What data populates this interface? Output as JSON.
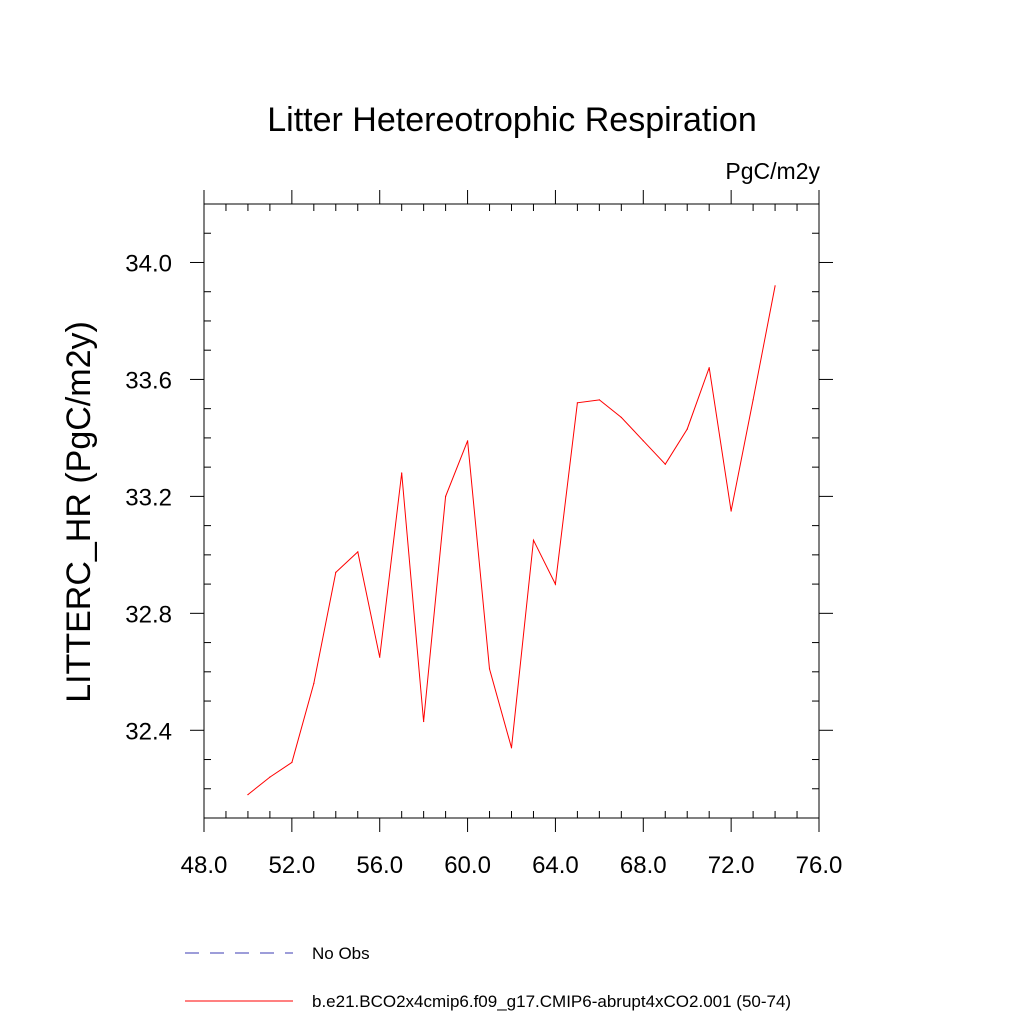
{
  "chart_data": {
    "type": "line",
    "title": "Litter Hetereotrophic Respiration",
    "units_label": "PgC/m2y",
    "xlabel": "",
    "ylabel": "LITTERC_HR  (PgC/m2y)",
    "xlim": [
      48.0,
      76.0
    ],
    "ylim": [
      32.1,
      34.2
    ],
    "x_ticks": [
      "48.0",
      "52.0",
      "56.0",
      "60.0",
      "64.0",
      "68.0",
      "72.0",
      "76.0"
    ],
    "y_ticks": [
      "32.4",
      "32.8",
      "33.2",
      "33.6",
      "34.0"
    ],
    "series": [
      {
        "name": "b.e21.BCO2x4cmip6.f09_g17.CMIP6-abrupt4xCO2.001 (50-74)",
        "color": "#ff0000",
        "style": "solid",
        "x": [
          50,
          51,
          52,
          53,
          54,
          55,
          56,
          57,
          58,
          59,
          60,
          61,
          62,
          63,
          64,
          65,
          66,
          67,
          68,
          69,
          70,
          71,
          72,
          73,
          74
        ],
        "y": [
          32.18,
          32.24,
          32.29,
          32.56,
          32.94,
          33.01,
          32.65,
          33.28,
          32.43,
          33.2,
          33.39,
          32.61,
          32.34,
          33.05,
          32.9,
          33.52,
          33.53,
          33.47,
          33.39,
          33.31,
          33.43,
          33.64,
          33.15,
          33.53,
          33.92
        ]
      }
    ],
    "legend": [
      {
        "label": "No Obs",
        "color": "#3b3bb3",
        "style": "dashed"
      },
      {
        "label": "b.e21.BCO2x4cmip6.f09_g17.CMIP6-abrupt4xCO2.001 (50-74)",
        "color": "#ff0000",
        "style": "solid"
      }
    ]
  }
}
